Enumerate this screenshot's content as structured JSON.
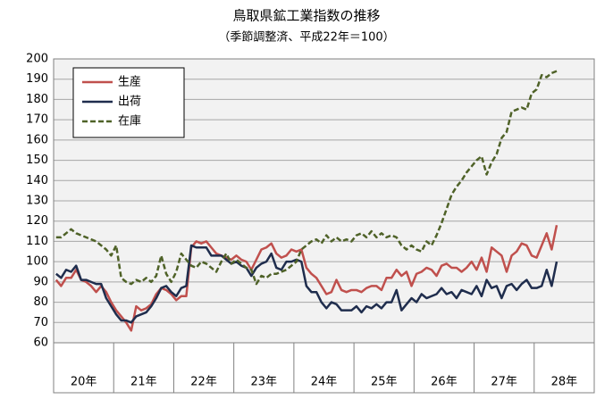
{
  "chart_data": {
    "type": "line",
    "title": "鳥取県鉱工業指数の推移",
    "subtitle": "（季節調整済、平成22年＝100）",
    "year_labels": [
      "20年",
      "21年",
      "22年",
      "23年",
      "24年",
      "25年",
      "26年",
      "27年",
      "28年"
    ],
    "ylim": [
      60,
      200
    ],
    "yticks": [
      60,
      70,
      80,
      90,
      100,
      110,
      120,
      130,
      140,
      150,
      160,
      170,
      180,
      190,
      200
    ],
    "grid": true,
    "legend": "upper-left",
    "series": [
      {
        "name": "生産",
        "color": "#c0504d",
        "dash": "solid",
        "values": [
          91,
          88,
          92,
          92,
          96,
          91,
          90,
          88,
          85,
          88,
          85,
          80,
          76,
          73,
          70,
          66,
          78,
          76,
          77,
          79,
          84,
          87,
          86,
          84,
          81,
          83,
          83,
          107,
          110,
          109,
          110,
          107,
          104,
          103,
          102,
          101,
          103,
          101,
          100,
          96,
          101,
          106,
          107,
          109,
          104,
          102,
          103,
          106,
          105,
          106,
          97,
          94,
          92,
          88,
          84,
          85,
          91,
          86,
          85,
          86,
          86,
          85,
          87,
          88,
          88,
          86,
          92,
          92,
          96,
          93,
          95,
          88,
          94,
          95,
          97,
          96,
          93,
          98,
          99,
          97,
          97,
          95,
          97,
          100,
          96,
          102,
          95,
          107,
          105,
          103,
          95,
          103,
          105,
          109,
          108,
          103,
          102,
          108,
          114,
          106,
          118
        ]
      },
      {
        "name": "出荷",
        "color": "#1f2d4d",
        "dash": "solid",
        "values": [
          94,
          92,
          96,
          95,
          98,
          91,
          91,
          90,
          89,
          89,
          82,
          78,
          74,
          71,
          71,
          70,
          73,
          74,
          75,
          78,
          82,
          87,
          88,
          85,
          83,
          87,
          88,
          108,
          107,
          107,
          107,
          103,
          103,
          103,
          101,
          99,
          100,
          98,
          97,
          93,
          97,
          99,
          100,
          104,
          97,
          96,
          100,
          100,
          101,
          100,
          88,
          85,
          85,
          80,
          77,
          80,
          79,
          76,
          76,
          76,
          78,
          75,
          78,
          77,
          79,
          77,
          80,
          80,
          86,
          76,
          79,
          82,
          80,
          84,
          82,
          83,
          84,
          87,
          84,
          85,
          82,
          86,
          85,
          84,
          88,
          83,
          91,
          87,
          88,
          82,
          88,
          89,
          86,
          89,
          91,
          87,
          87,
          88,
          96,
          88,
          100
        ]
      },
      {
        "name": "在庫",
        "color": "#4f6228",
        "dash": "dashed",
        "values": [
          112,
          112,
          114,
          116,
          114,
          113,
          112,
          111,
          110,
          108,
          106,
          103,
          108,
          92,
          90,
          89,
          91,
          90,
          92,
          90,
          93,
          103,
          94,
          90,
          95,
          104,
          101,
          98,
          97,
          100,
          99,
          97,
          95,
          100,
          104,
          99,
          101,
          99,
          97,
          96,
          89,
          93,
          92,
          94,
          94,
          95,
          96,
          98,
          100,
          106,
          108,
          110,
          111,
          109,
          113,
          110,
          112,
          110,
          111,
          110,
          113,
          114,
          112,
          115,
          112,
          114,
          112,
          113,
          112,
          108,
          106,
          108,
          106,
          105,
          110,
          108,
          113,
          119,
          126,
          133,
          137,
          140,
          144,
          147,
          150,
          152,
          143,
          149,
          153,
          161,
          164,
          174,
          175,
          176,
          175,
          183,
          185,
          192,
          191,
          193,
          194
        ]
      }
    ]
  }
}
